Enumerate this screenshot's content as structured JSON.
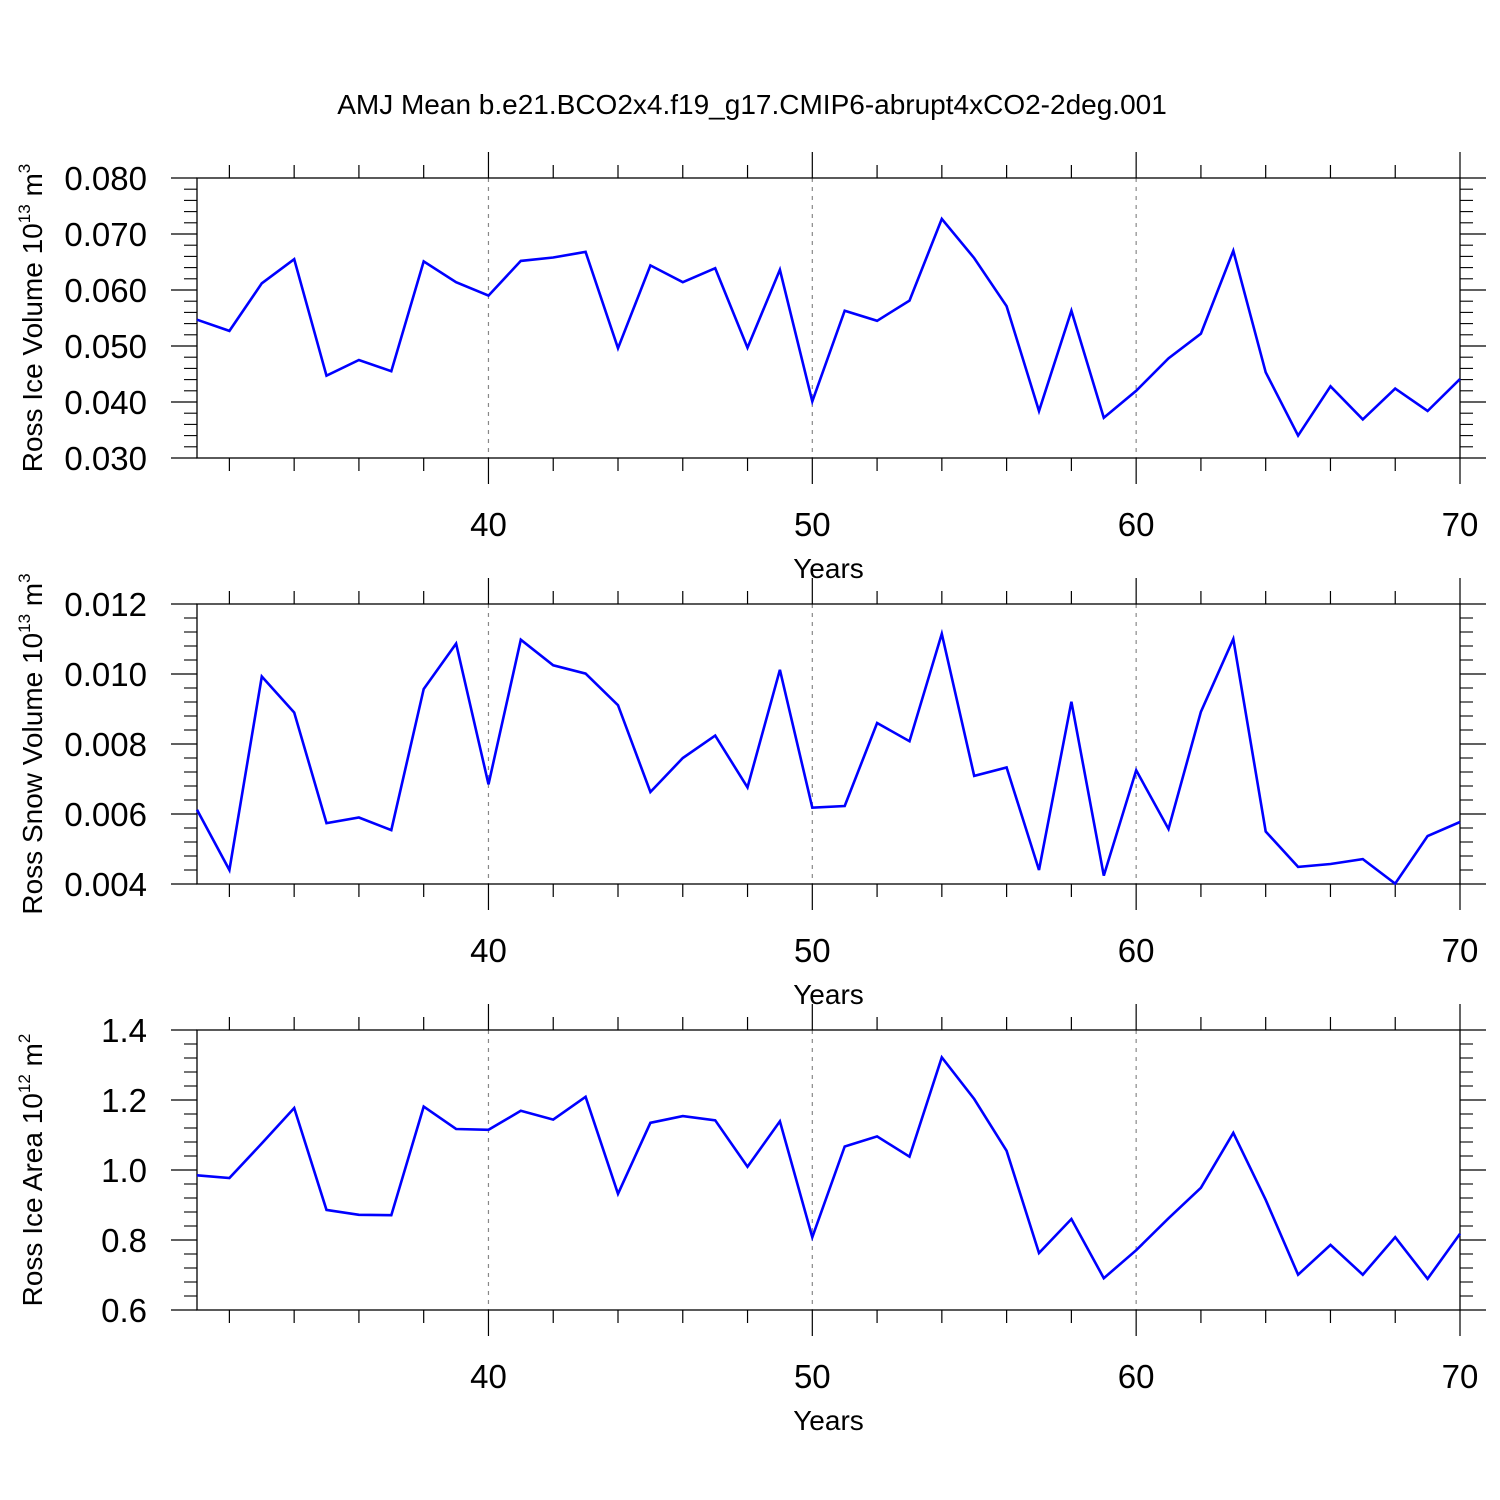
{
  "figure": {
    "title": "AMJ Mean b.e21.BCO2x4.f19_g17.CMIP6-abrupt4xCO2-2deg.001"
  },
  "chart_data": [
    {
      "type": "line",
      "xlabel": "Years",
      "ylabel": "Ross Ice Volume 10<sup>13</sup> m<sup>3</sup>",
      "xlim": [
        31,
        70
      ],
      "ylim": [
        0.03,
        0.08
      ],
      "xticks": [
        40,
        50,
        60,
        70
      ],
      "xtick_labels": [
        "40",
        "50",
        "60",
        "70"
      ],
      "yticks": [
        0.03,
        0.04,
        0.05,
        0.06,
        0.07,
        0.08
      ],
      "ytick_labels": [
        "0.030",
        "0.040",
        "0.050",
        "0.060",
        "0.070",
        "0.080"
      ],
      "grid": "dashed vertical at major x ticks",
      "series": [
        {
          "color": "#0000ff",
          "x": [
            31,
            32,
            33,
            34,
            35,
            36,
            37,
            38,
            39,
            40,
            41,
            42,
            43,
            44,
            45,
            46,
            47,
            48,
            49,
            50,
            51,
            52,
            53,
            54,
            55,
            56,
            57,
            58,
            59,
            60,
            61,
            62,
            63,
            64,
            65,
            66,
            67,
            68,
            69,
            70
          ],
          "y": [
            0.0547,
            0.0527,
            0.0612,
            0.0655,
            0.0447,
            0.0475,
            0.0455,
            0.0651,
            0.0614,
            0.059,
            0.0652,
            0.0658,
            0.0668,
            0.0496,
            0.0644,
            0.0614,
            0.0639,
            0.0497,
            0.0636,
            0.0401,
            0.0563,
            0.0545,
            0.0581,
            0.0727,
            0.0657,
            0.0571,
            0.0384,
            0.0563,
            0.0372,
            0.042,
            0.0478,
            0.0522,
            0.067,
            0.0453,
            0.034,
            0.0428,
            0.0369,
            0.0424,
            0.0384,
            0.0441
          ]
        }
      ]
    },
    {
      "type": "line",
      "xlabel": "Years",
      "ylabel": "Ross Snow Volume 10<sup>13</sup> m<sup>3</sup>",
      "xlim": [
        31,
        70
      ],
      "ylim": [
        0.004,
        0.012
      ],
      "xticks": [
        40,
        50,
        60,
        70
      ],
      "xtick_labels": [
        "40",
        "50",
        "60",
        "70"
      ],
      "yticks": [
        0.004,
        0.006,
        0.008,
        0.01,
        0.012
      ],
      "ytick_labels": [
        "0.004",
        "0.006",
        "0.008",
        "0.010",
        "0.012"
      ],
      "grid": "dashed vertical at major x ticks",
      "series": [
        {
          "color": "#0000ff",
          "x": [
            31,
            32,
            33,
            34,
            35,
            36,
            37,
            38,
            39,
            40,
            41,
            42,
            43,
            44,
            45,
            46,
            47,
            48,
            49,
            50,
            51,
            52,
            53,
            54,
            55,
            56,
            57,
            58,
            59,
            60,
            61,
            62,
            63,
            64,
            65,
            66,
            67,
            68,
            69,
            70
          ],
          "y": [
            0.00612,
            0.0044,
            0.00993,
            0.0089,
            0.00574,
            0.0059,
            0.00554,
            0.00957,
            0.01087,
            0.00685,
            0.01098,
            0.01025,
            0.01001,
            0.00911,
            0.00663,
            0.0076,
            0.00824,
            0.00676,
            0.01012,
            0.00618,
            0.00623,
            0.0086,
            0.00808,
            0.01115,
            0.00709,
            0.00733,
            0.0044,
            0.00921,
            0.00424,
            0.00725,
            0.00557,
            0.00892,
            0.011,
            0.0055,
            0.00449,
            0.00457,
            0.00471,
            0.00401,
            0.00537,
            0.00577
          ]
        }
      ]
    },
    {
      "type": "line",
      "xlabel": "Years",
      "ylabel": "Ross Ice Area 10<sup>12</sup> m<sup>2</sup>",
      "xlim": [
        31,
        70
      ],
      "ylim": [
        0.6,
        1.4
      ],
      "xticks": [
        40,
        50,
        60,
        70
      ],
      "xtick_labels": [
        "40",
        "50",
        "60",
        "70"
      ],
      "yticks": [
        0.6,
        0.8,
        1.0,
        1.2,
        1.4
      ],
      "ytick_labels": [
        "0.6",
        "0.8",
        "1.0",
        "1.2",
        "1.4"
      ],
      "grid": "dashed vertical at major x ticks",
      "series": [
        {
          "color": "#0000ff",
          "x": [
            31,
            32,
            33,
            34,
            35,
            36,
            37,
            38,
            39,
            40,
            41,
            42,
            43,
            44,
            45,
            46,
            47,
            48,
            49,
            50,
            51,
            52,
            53,
            54,
            55,
            56,
            57,
            58,
            59,
            60,
            61,
            62,
            63,
            64,
            65,
            66,
            67,
            68,
            69,
            70
          ],
          "y": [
            0.985,
            0.977,
            1.076,
            1.177,
            0.886,
            0.872,
            0.871,
            1.181,
            1.117,
            1.115,
            1.169,
            1.144,
            1.209,
            0.932,
            1.135,
            1.154,
            1.142,
            1.009,
            1.139,
            0.808,
            1.067,
            1.096,
            1.038,
            1.322,
            1.203,
            1.055,
            0.763,
            0.86,
            0.691,
            0.771,
            0.862,
            0.949,
            1.106,
            0.915,
            0.701,
            0.786,
            0.701,
            0.808,
            0.689,
            0.818
          ]
        }
      ]
    }
  ]
}
